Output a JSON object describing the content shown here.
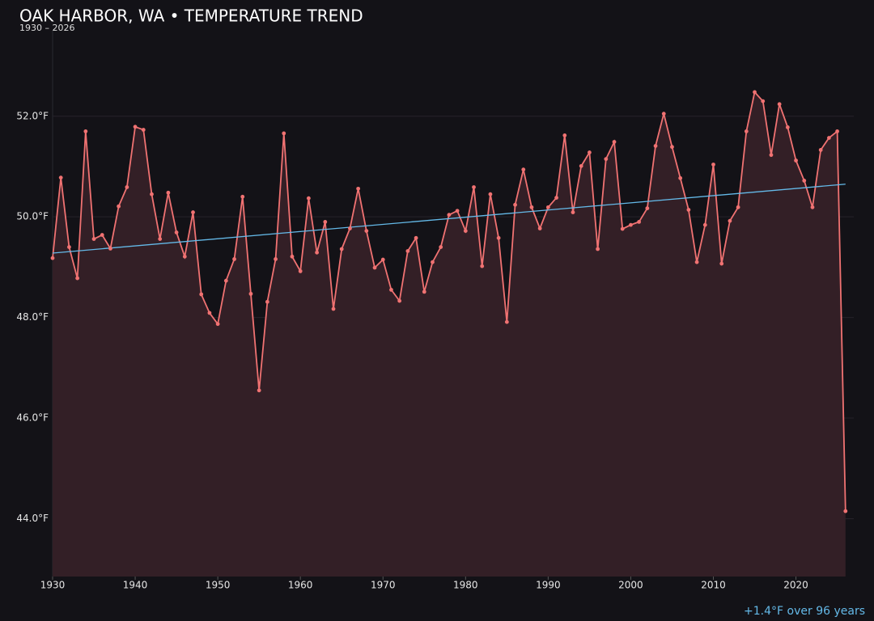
{
  "chart_data": {
    "type": "line",
    "title": "OAK HARBOR, WA • TEMPERATURE TREND",
    "subtitle": "1930 – 2026",
    "annotation": "+1.4°F over 96 years",
    "x": [
      1930,
      1931,
      1932,
      1933,
      1934,
      1935,
      1936,
      1937,
      1938,
      1939,
      1940,
      1941,
      1942,
      1943,
      1944,
      1945,
      1946,
      1947,
      1948,
      1949,
      1950,
      1951,
      1952,
      1953,
      1954,
      1955,
      1956,
      1957,
      1958,
      1959,
      1960,
      1961,
      1962,
      1963,
      1964,
      1965,
      1966,
      1967,
      1968,
      1969,
      1970,
      1971,
      1972,
      1973,
      1974,
      1975,
      1976,
      1977,
      1978,
      1979,
      1980,
      1981,
      1982,
      1983,
      1984,
      1985,
      1986,
      1987,
      1988,
      1989,
      1990,
      1991,
      1992,
      1993,
      1994,
      1995,
      1996,
      1997,
      1998,
      1999,
      2000,
      2001,
      2002,
      2003,
      2004,
      2005,
      2006,
      2007,
      2008,
      2009,
      2010,
      2011,
      2012,
      2013,
      2014,
      2015,
      2016,
      2017,
      2018,
      2019,
      2020,
      2021,
      2022,
      2023,
      2024,
      2025,
      2026
    ],
    "series": [
      {
        "color": "#f07272",
        "fill": "#331f26",
        "values": [
          49.18,
          50.78,
          49.4,
          48.78,
          51.7,
          49.56,
          49.64,
          49.37,
          50.21,
          50.59,
          51.79,
          51.73,
          50.45,
          49.56,
          50.48,
          49.69,
          49.21,
          50.09,
          48.46,
          48.09,
          47.87,
          48.73,
          49.16,
          50.4,
          48.47,
          46.55,
          48.31,
          49.16,
          51.66,
          49.21,
          48.92,
          50.37,
          49.29,
          49.9,
          48.17,
          49.36,
          49.77,
          50.56,
          49.72,
          48.99,
          49.15,
          48.55,
          48.33,
          49.32,
          49.58,
          48.51,
          49.1,
          49.4,
          50.04,
          50.12,
          49.72,
          50.59,
          49.02,
          50.45,
          49.58,
          47.91,
          50.24,
          50.94,
          50.19,
          49.77,
          50.19,
          50.38,
          51.62,
          50.09,
          51.01,
          51.28,
          49.36,
          51.15,
          51.49,
          49.76,
          49.84,
          49.9,
          50.17,
          51.41,
          52.05,
          51.39,
          50.77,
          50.14,
          49.1,
          49.84,
          51.04,
          49.07,
          49.92,
          50.19,
          51.7,
          52.48,
          52.3,
          51.23,
          52.24,
          51.78,
          51.12,
          50.72,
          50.19,
          51.33,
          51.57,
          51.7,
          44.15
        ]
      }
    ],
    "trend": {
      "color": "#64b9e8",
      "x": [
        1930,
        2026
      ],
      "values": [
        49.28,
        50.65
      ]
    },
    "xlim": [
      1930,
      2027
    ],
    "ylim": [
      42.85,
      53.7
    ],
    "xticks": [
      1930,
      1940,
      1950,
      1960,
      1970,
      1980,
      1990,
      2000,
      2010,
      2020
    ],
    "yticks": [
      {
        "value": 44,
        "label": "44.0°F"
      },
      {
        "value": 46,
        "label": "46.0°F"
      },
      {
        "value": 48,
        "label": "48.0°F"
      },
      {
        "value": 50,
        "label": "50.0°F"
      },
      {
        "value": 52,
        "label": "52.0°F"
      }
    ],
    "grid": true
  }
}
